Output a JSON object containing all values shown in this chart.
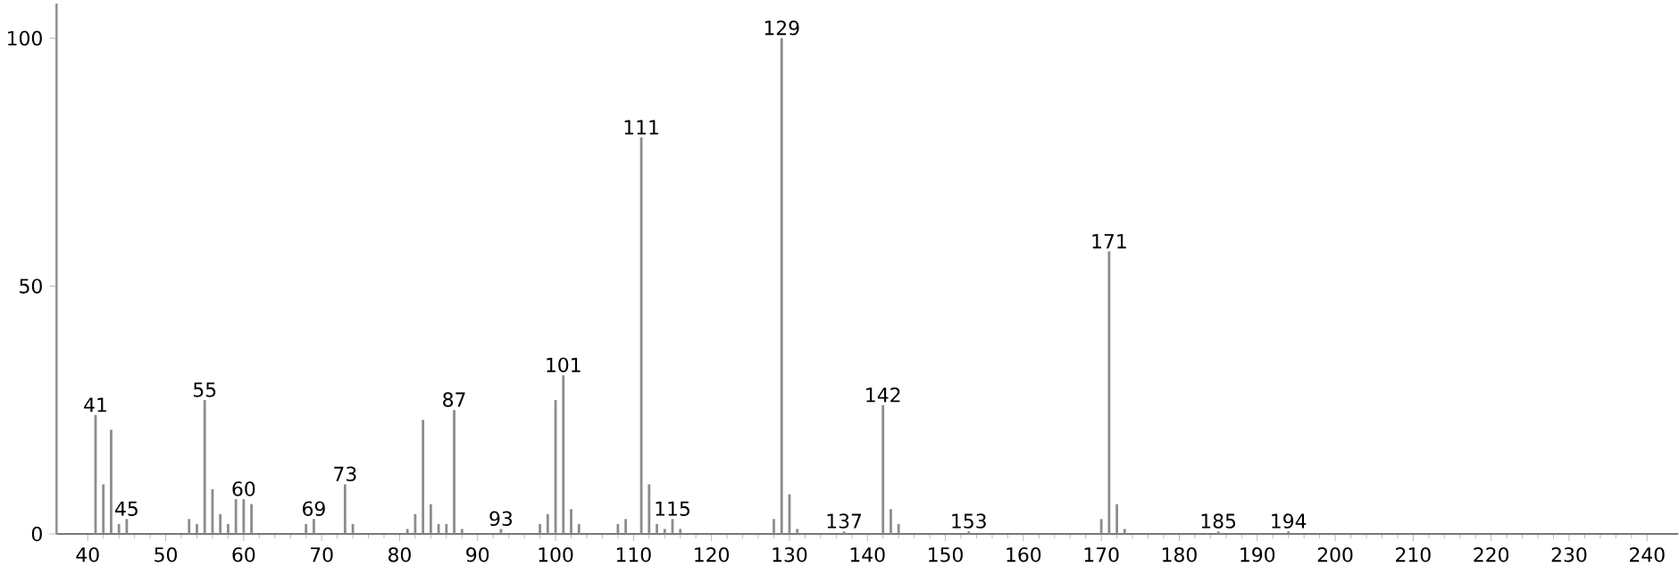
{
  "chart_data": {
    "type": "bar",
    "color": "#8c8c8c",
    "x": [
      41,
      42,
      43,
      44,
      45,
      53,
      54,
      55,
      56,
      57,
      58,
      59,
      60,
      61,
      68,
      69,
      73,
      74,
      81,
      82,
      83,
      84,
      85,
      86,
      87,
      88,
      93,
      98,
      99,
      100,
      101,
      102,
      103,
      108,
      109,
      111,
      112,
      113,
      114,
      115,
      116,
      128,
      129,
      130,
      131,
      137,
      142,
      143,
      144,
      153,
      170,
      171,
      172,
      173,
      185,
      194
    ],
    "values": [
      24,
      10,
      21,
      2,
      3,
      3,
      2,
      27,
      9,
      4,
      2,
      7,
      7,
      6,
      2,
      3,
      10,
      2,
      1,
      4,
      23,
      6,
      2,
      2,
      25,
      1,
      1,
      2,
      4,
      27,
      32,
      5,
      2,
      2,
      3,
      80,
      10,
      2,
      1,
      3,
      1,
      3,
      100,
      8,
      1,
      0.5,
      26,
      5,
      2,
      0.5,
      3,
      57,
      6,
      1,
      0.5,
      0.5
    ],
    "xlim": [
      36,
      244
    ],
    "ylim": [
      0,
      107
    ],
    "xticks": [
      40,
      50,
      60,
      70,
      80,
      90,
      100,
      110,
      120,
      130,
      140,
      150,
      160,
      170,
      180,
      190,
      200,
      210,
      220,
      230,
      240
    ],
    "yticks": [
      0,
      50,
      100
    ],
    "annotations": [
      {
        "text": "41",
        "x": 41,
        "y": 24
      },
      {
        "text": "45",
        "x": 45,
        "y": 3
      },
      {
        "text": "55",
        "x": 55,
        "y": 27
      },
      {
        "text": "60",
        "x": 60,
        "y": 7
      },
      {
        "text": "69",
        "x": 69,
        "y": 3
      },
      {
        "text": "73",
        "x": 73,
        "y": 10
      },
      {
        "text": "87",
        "x": 87,
        "y": 25
      },
      {
        "text": "93",
        "x": 93,
        "y": 1
      },
      {
        "text": "101",
        "x": 101,
        "y": 32
      },
      {
        "text": "111",
        "x": 111,
        "y": 80
      },
      {
        "text": "115",
        "x": 115,
        "y": 3
      },
      {
        "text": "129",
        "x": 129,
        "y": 100
      },
      {
        "text": "137",
        "x": 137,
        "y": 0.5
      },
      {
        "text": "142",
        "x": 142,
        "y": 26
      },
      {
        "text": "153",
        "x": 153,
        "y": 0.5
      },
      {
        "text": "171",
        "x": 171,
        "y": 57
      },
      {
        "text": "185",
        "x": 185,
        "y": 0.5
      },
      {
        "text": "194",
        "x": 194,
        "y": 0.5
      }
    ],
    "grid": false
  }
}
